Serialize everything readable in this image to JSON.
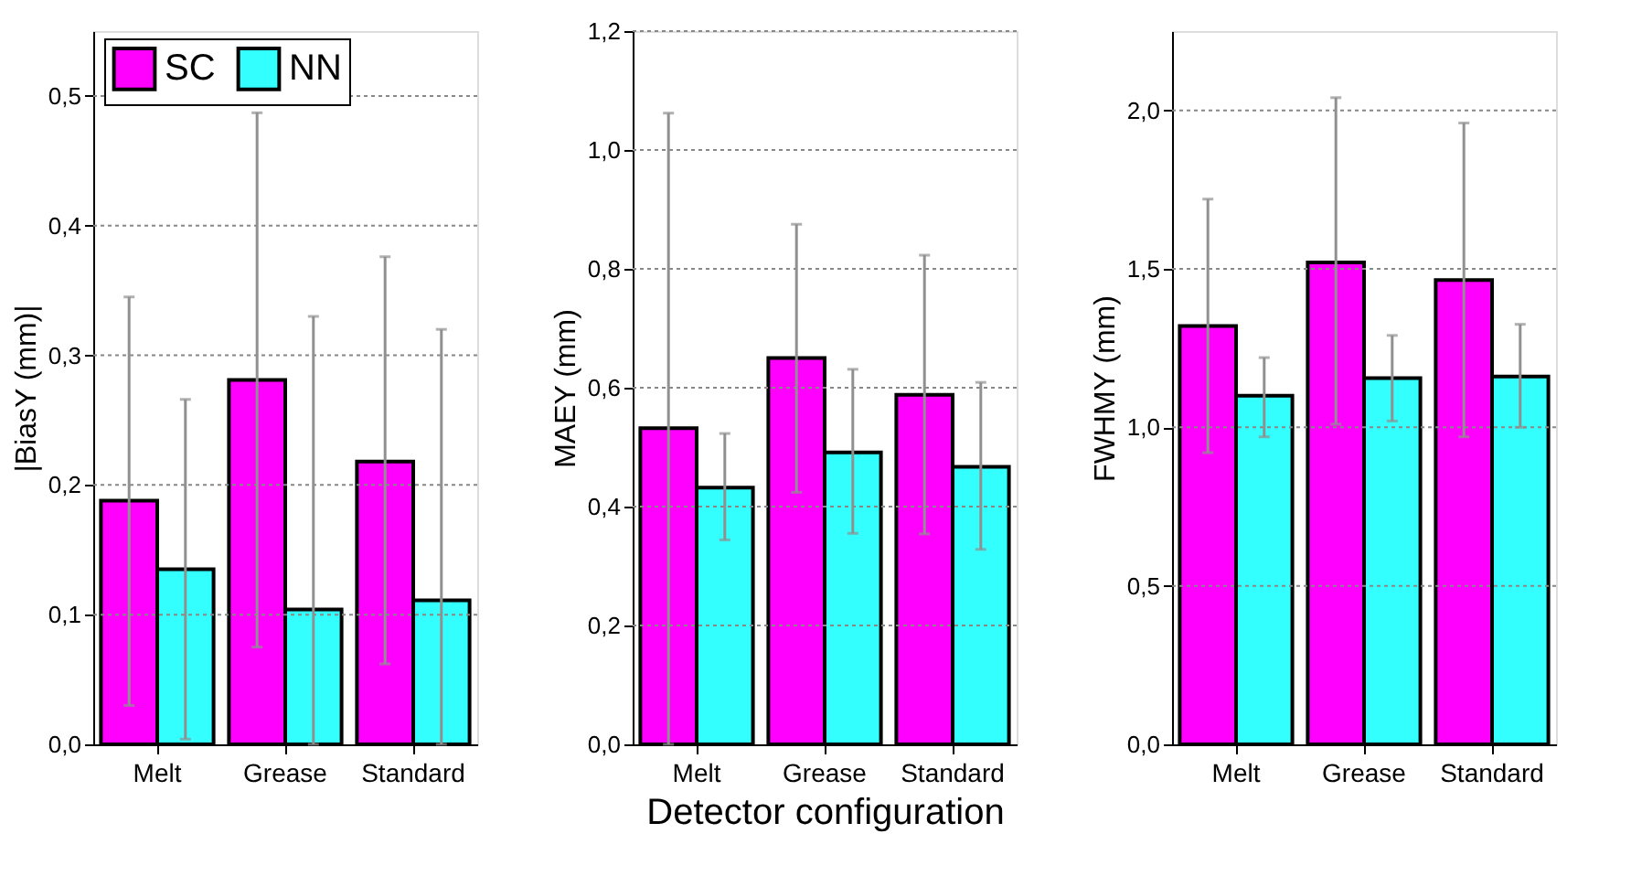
{
  "chart_data": [
    {
      "type": "bar",
      "categories": [
        "Melt",
        "Grease",
        "Standard"
      ],
      "ylabel": "|BiasY (mm)|",
      "ylim": [
        0,
        0.55
      ],
      "yticks": [
        {
          "value": 0,
          "label": "0,0"
        },
        {
          "value": 0.1,
          "label": "0,1"
        },
        {
          "value": 0.2,
          "label": "0,2"
        },
        {
          "value": 0.3,
          "label": "0,3"
        },
        {
          "value": 0.4,
          "label": "0,4"
        },
        {
          "value": 0.5,
          "label": "0,5"
        }
      ],
      "grid": "y",
      "legend": "top left",
      "series": [
        {
          "name": "SC",
          "color": "#ff00ff",
          "values": [
            0.188,
            0.281,
            0.218
          ],
          "errors": [
            [
              0.03,
              0.345
            ],
            [
              0.075,
              0.487
            ],
            [
              0.062,
              0.376
            ]
          ]
        },
        {
          "name": "NN",
          "color": "#33ffff",
          "values": [
            0.135,
            0.104,
            0.111
          ],
          "errors": [
            [
              0.004,
              0.266
            ],
            [
              0,
              0.33
            ],
            [
              0,
              0.32
            ]
          ]
        }
      ]
    },
    {
      "type": "bar",
      "categories": [
        "Melt",
        "Grease",
        "Standard"
      ],
      "ylabel": "MAEY (mm)",
      "xlabel": "Detector configuration",
      "ylim": [
        0,
        1.2
      ],
      "yticks": [
        {
          "value": 0,
          "label": "0,0"
        },
        {
          "value": 0.2,
          "label": "0,2"
        },
        {
          "value": 0.4,
          "label": "0,4"
        },
        {
          "value": 0.6,
          "label": "0,6"
        },
        {
          "value": 0.8,
          "label": "0,8"
        },
        {
          "value": 1.0,
          "label": "1,0"
        },
        {
          "value": 1.2,
          "label": "1,2"
        }
      ],
      "grid": "y",
      "legend": false,
      "series": [
        {
          "name": "SC",
          "color": "#ff00ff",
          "values": [
            0.532,
            0.65,
            0.588
          ],
          "errors": [
            [
              0,
              1.062
            ],
            [
              0.424,
              0.875
            ],
            [
              0.354,
              0.823
            ]
          ]
        },
        {
          "name": "NN",
          "color": "#33ffff",
          "values": [
            0.432,
            0.491,
            0.467
          ],
          "errors": [
            [
              0.344,
              0.523
            ],
            [
              0.355,
              0.631
            ],
            [
              0.328,
              0.609
            ]
          ]
        }
      ]
    },
    {
      "type": "bar",
      "categories": [
        "Melt",
        "Grease",
        "Standard"
      ],
      "ylabel": "FWHMY (mm)",
      "ylim": [
        0,
        2.25
      ],
      "yticks": [
        {
          "value": 0,
          "label": "0,0"
        },
        {
          "value": 0.5,
          "label": "0,5"
        },
        {
          "value": 1.0,
          "label": "1,0"
        },
        {
          "value": 1.5,
          "label": "1,5"
        },
        {
          "value": 2.0,
          "label": "2,0"
        }
      ],
      "grid": "y",
      "legend": false,
      "series": [
        {
          "name": "SC",
          "color": "#ff00ff",
          "values": [
            1.32,
            1.52,
            1.465
          ],
          "errors": [
            [
              0.92,
              1.72
            ],
            [
              1.01,
              2.04
            ],
            [
              0.97,
              1.96
            ]
          ]
        },
        {
          "name": "NN",
          "color": "#33ffff",
          "values": [
            1.1,
            1.155,
            1.16
          ],
          "errors": [
            [
              0.97,
              1.22
            ],
            [
              1.02,
              1.29
            ],
            [
              1.0,
              1.325
            ]
          ]
        }
      ]
    }
  ]
}
